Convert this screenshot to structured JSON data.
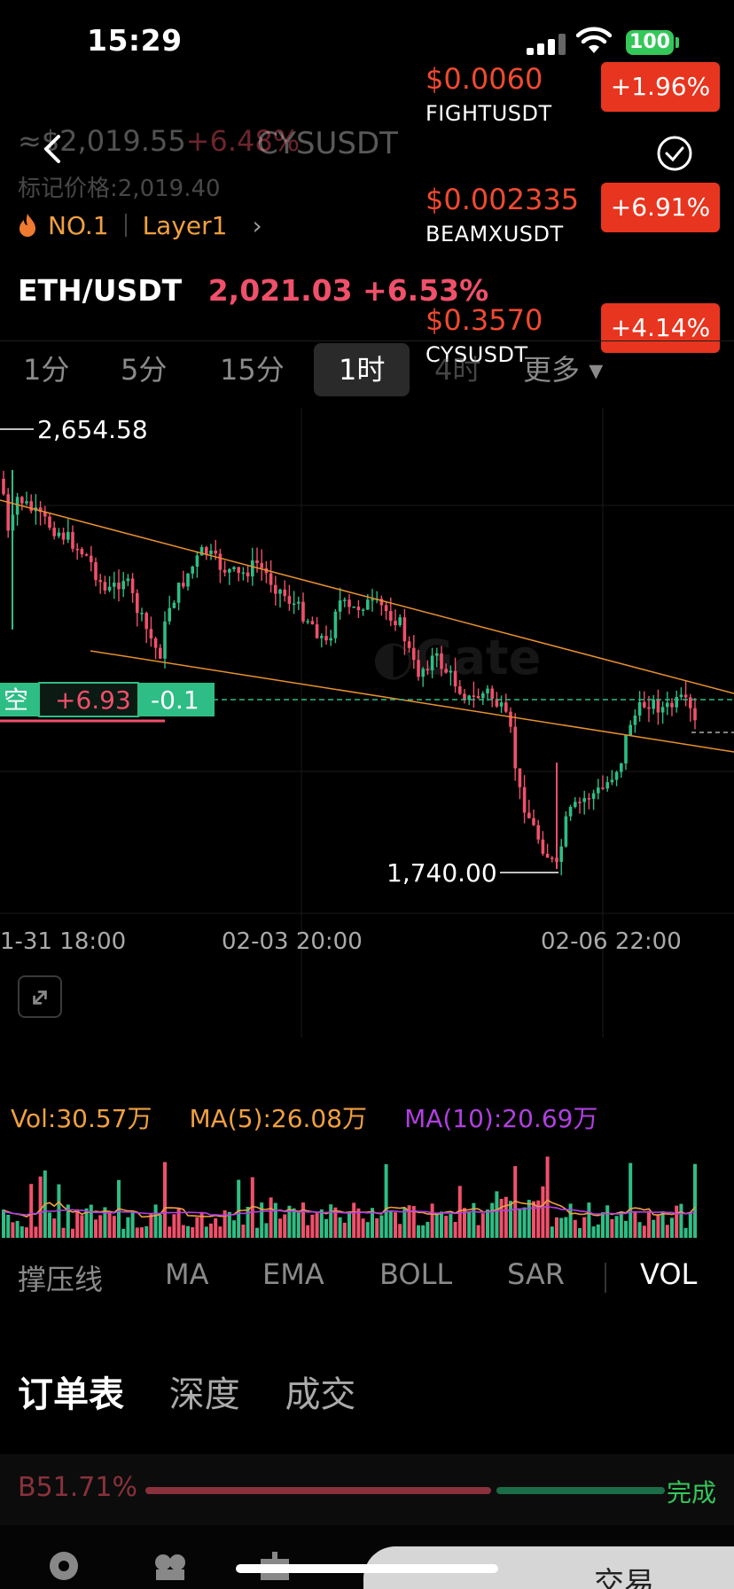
{
  "status_bar": {
    "time": "15:29",
    "battery": "100"
  },
  "background_header": {
    "price": "≈$2,019.55",
    "change": "+6.48%",
    "pair": "CYSUSDT",
    "mark_price_label": "标记价格:2,019.40"
  },
  "rank": {
    "label": "NO.1",
    "category": "Layer1"
  },
  "pair": {
    "name": "ETH/USDT",
    "price": "2,021.03",
    "change": "+6.53%"
  },
  "timeframes": [
    "1分",
    "5分",
    "15分",
    "1时",
    "4时",
    "更多"
  ],
  "active_timeframe": "1时",
  "tickers": [
    {
      "price": "$0.0060",
      "symbol": "FIGHTUSDT",
      "change": "+1.96%"
    },
    {
      "price": "$0.002335",
      "symbol": "BEAMXUSDT",
      "change": "+6.91%"
    },
    {
      "price": "$0.3570",
      "symbol": "CYSUSDT",
      "change": "+4.14%"
    }
  ],
  "position_tag": {
    "side": "空",
    "pnl": "+6.93",
    "diff": "-0.1"
  },
  "chart_data": {
    "type": "candlestick",
    "high_label": "2,654.58",
    "low_label": "1,740.00",
    "x_ticks": [
      "1-31 18:00",
      "02-03 20:00",
      "02-06 22:00"
    ],
    "ylim": [
      1700,
      2700
    ],
    "colors": {
      "up": "#2ebd85",
      "down": "#f0506a",
      "trend": "#e8912e"
    }
  },
  "volume": {
    "vol": "Vol:30.57万",
    "ma5": "MA(5):26.08万",
    "ma10": "MA(10):20.69万",
    "colors": {
      "vol": "#f0a040",
      "ma5": "#f0a040",
      "ma10": "#b040e0"
    }
  },
  "indicators": [
    "撑压线",
    "MA",
    "EMA",
    "BOLL",
    "SAR",
    "VOL"
  ],
  "active_indicator": "VOL",
  "tabs": [
    "订单表",
    "深度",
    "成交"
  ],
  "depth": {
    "buy_ratio": "B51.71%",
    "done": "完成"
  },
  "trade_button": "交易"
}
